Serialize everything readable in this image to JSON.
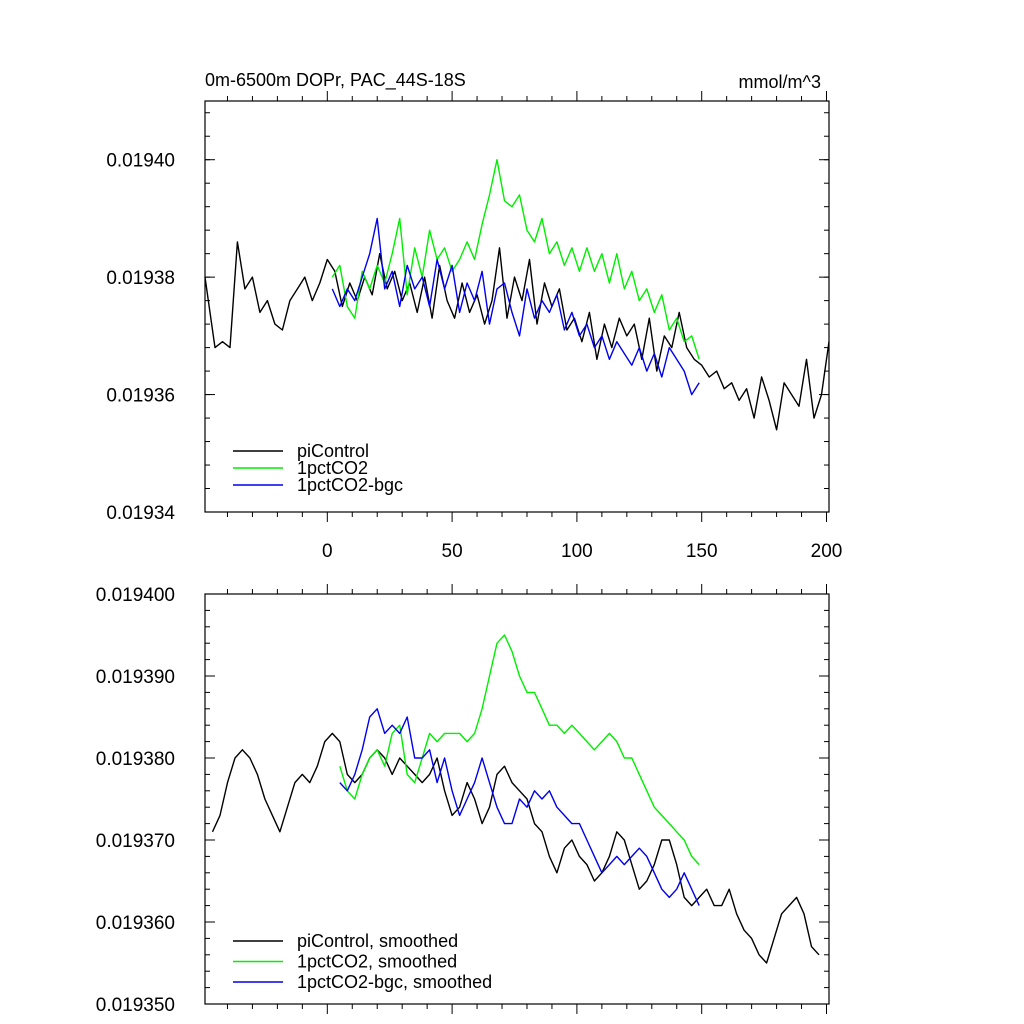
{
  "chart_data": [
    {
      "type": "line",
      "title": "0m-6500m DOPr, PAC_44S-18S",
      "units": "mmol/m^3",
      "xlabel": "",
      "ylabel": "",
      "xlim": [
        -49,
        201
      ],
      "ylim": [
        0.01934,
        0.01941
      ],
      "xticks": [
        0,
        50,
        100,
        150,
        200
      ],
      "xtick_labels": [
        "0",
        "50",
        "100",
        "150",
        "200"
      ],
      "yticks": [
        0.01934,
        0.01936,
        0.01938,
        0.0194
      ],
      "ytick_labels": [
        "0.01934",
        "0.01936",
        "0.01938",
        "0.01940"
      ],
      "legend_position": "bottom-left",
      "series": [
        {
          "name": "piControl",
          "color": "#000000",
          "x": [
            -49,
            -45,
            -42,
            -39,
            -36,
            -33,
            -30,
            -27,
            -24,
            -21,
            -18,
            -15,
            -12,
            -9,
            -6,
            -3,
            0,
            3,
            6,
            9,
            12,
            15,
            18,
            21,
            24,
            27,
            30,
            33,
            36,
            39,
            42,
            45,
            48,
            51,
            54,
            57,
            60,
            63,
            66,
            69,
            72,
            75,
            78,
            81,
            84,
            87,
            90,
            93,
            96,
            99,
            102,
            105,
            108,
            111,
            114,
            117,
            120,
            123,
            126,
            129,
            132,
            135,
            138,
            141,
            144,
            147,
            150,
            153,
            156,
            159,
            162,
            165,
            168,
            171,
            174,
            177,
            180,
            183,
            186,
            189,
            192,
            195,
            198,
            201
          ],
          "values": [
            0.01938,
            0.019368,
            0.019369,
            0.019368,
            0.019386,
            0.019378,
            0.01938,
            0.019374,
            0.019376,
            0.019372,
            0.019371,
            0.019376,
            0.019378,
            0.01938,
            0.019376,
            0.019379,
            0.019383,
            0.019381,
            0.019375,
            0.019379,
            0.019376,
            0.01938,
            0.019377,
            0.019384,
            0.019378,
            0.019381,
            0.019376,
            0.019379,
            0.019374,
            0.01938,
            0.019373,
            0.019382,
            0.019376,
            0.019373,
            0.019379,
            0.019374,
            0.019377,
            0.019372,
            0.019376,
            0.019385,
            0.019373,
            0.01938,
            0.019376,
            0.019383,
            0.019372,
            0.019379,
            0.019375,
            0.019378,
            0.019371,
            0.019373,
            0.019369,
            0.019374,
            0.019366,
            0.019372,
            0.019368,
            0.019373,
            0.01937,
            0.019372,
            0.019366,
            0.019373,
            0.019364,
            0.01937,
            0.019368,
            0.019374,
            0.019368,
            0.019366,
            0.019365,
            0.019363,
            0.019364,
            0.019361,
            0.019362,
            0.019359,
            0.019361,
            0.019356,
            0.019363,
            0.019359,
            0.019354,
            0.019362,
            0.01936,
            0.019358,
            0.019366,
            0.019356,
            0.01936,
            0.019369
          ]
        },
        {
          "name": "1pctCO2",
          "color": "#00ee00",
          "x": [
            2,
            5,
            8,
            11,
            14,
            17,
            20,
            23,
            26,
            29,
            32,
            35,
            38,
            41,
            44,
            47,
            50,
            53,
            56,
            59,
            62,
            65,
            68,
            71,
            74,
            77,
            80,
            83,
            86,
            89,
            92,
            95,
            98,
            101,
            104,
            107,
            110,
            113,
            116,
            119,
            122,
            125,
            128,
            131,
            134,
            137,
            140,
            143,
            146,
            149
          ],
          "values": [
            0.01938,
            0.019382,
            0.019375,
            0.019373,
            0.019381,
            0.019378,
            0.019382,
            0.019379,
            0.019384,
            0.01939,
            0.019377,
            0.019385,
            0.01938,
            0.019388,
            0.019383,
            0.019385,
            0.019381,
            0.019383,
            0.019386,
            0.019383,
            0.019389,
            0.019394,
            0.0194,
            0.019393,
            0.019392,
            0.019394,
            0.019388,
            0.019386,
            0.01939,
            0.019384,
            0.019386,
            0.019382,
            0.019385,
            0.019381,
            0.019385,
            0.019381,
            0.019384,
            0.019379,
            0.019384,
            0.019378,
            0.019381,
            0.019376,
            0.019378,
            0.019374,
            0.019377,
            0.019371,
            0.019373,
            0.019369,
            0.01937,
            0.019366
          ]
        },
        {
          "name": "1pctCO2-bgc",
          "color": "#0000ee",
          "x": [
            2,
            5,
            8,
            11,
            14,
            17,
            20,
            23,
            26,
            29,
            32,
            35,
            38,
            41,
            44,
            47,
            50,
            53,
            56,
            59,
            62,
            65,
            68,
            71,
            74,
            77,
            80,
            83,
            86,
            89,
            92,
            95,
            98,
            101,
            104,
            107,
            110,
            113,
            116,
            119,
            122,
            125,
            128,
            131,
            134,
            137,
            140,
            143,
            146,
            149
          ],
          "values": [
            0.019378,
            0.019375,
            0.019378,
            0.019376,
            0.01938,
            0.019384,
            0.01939,
            0.019378,
            0.019381,
            0.019375,
            0.019382,
            0.019378,
            0.01938,
            0.019375,
            0.019383,
            0.019378,
            0.019382,
            0.019374,
            0.019379,
            0.019376,
            0.019381,
            0.019372,
            0.019378,
            0.019379,
            0.019374,
            0.01937,
            0.019378,
            0.019373,
            0.019376,
            0.019374,
            0.019377,
            0.019371,
            0.019374,
            0.01937,
            0.019372,
            0.019368,
            0.01937,
            0.019366,
            0.019369,
            0.019367,
            0.019365,
            0.019368,
            0.019364,
            0.019367,
            0.019363,
            0.019368,
            0.019366,
            0.019364,
            0.01936,
            0.019362
          ]
        }
      ]
    },
    {
      "type": "line",
      "title": "",
      "xlabel": "",
      "ylabel": "",
      "xlim": [
        -49,
        201
      ],
      "ylim": [
        0.01935,
        0.0194
      ],
      "xticks": [
        0,
        50,
        100,
        150,
        200
      ],
      "yticks": [
        0.01935,
        0.01936,
        0.01937,
        0.01938,
        0.01939,
        0.0194
      ],
      "ytick_labels": [
        "0.019350",
        "0.019360",
        "0.019370",
        "0.019380",
        "0.019390",
        "0.019400"
      ],
      "legend_position": "bottom-left",
      "series": [
        {
          "name": "piControl, smoothed",
          "color": "#000000",
          "x": [
            -46,
            -43,
            -40,
            -37,
            -34,
            -31,
            -28,
            -25,
            -22,
            -19,
            -16,
            -13,
            -10,
            -7,
            -4,
            -1,
            2,
            5,
            8,
            11,
            14,
            17,
            20,
            23,
            26,
            29,
            32,
            35,
            38,
            41,
            44,
            47,
            50,
            53,
            56,
            59,
            62,
            65,
            68,
            71,
            74,
            77,
            80,
            83,
            86,
            89,
            92,
            95,
            98,
            101,
            104,
            107,
            110,
            113,
            116,
            119,
            122,
            125,
            128,
            131,
            134,
            137,
            140,
            143,
            146,
            149,
            152,
            155,
            158,
            161,
            164,
            167,
            170,
            173,
            176,
            179,
            182,
            185,
            188,
            191,
            194,
            197
          ],
          "values": [
            0.019371,
            0.019373,
            0.019377,
            0.01938,
            0.019381,
            0.01938,
            0.019378,
            0.019375,
            0.019373,
            0.019371,
            0.019374,
            0.019377,
            0.019378,
            0.019377,
            0.019379,
            0.019382,
            0.019383,
            0.019382,
            0.019378,
            0.019377,
            0.019378,
            0.01938,
            0.019381,
            0.01938,
            0.019378,
            0.01938,
            0.019379,
            0.019378,
            0.019377,
            0.019378,
            0.01938,
            0.019376,
            0.019373,
            0.019374,
            0.019377,
            0.019375,
            0.019372,
            0.019374,
            0.019378,
            0.019379,
            0.019377,
            0.019376,
            0.019375,
            0.019372,
            0.019371,
            0.019368,
            0.019366,
            0.019369,
            0.01937,
            0.019368,
            0.019367,
            0.019365,
            0.019366,
            0.019368,
            0.019371,
            0.01937,
            0.019367,
            0.019364,
            0.019365,
            0.019367,
            0.01937,
            0.01937,
            0.019367,
            0.019363,
            0.019362,
            0.019363,
            0.019364,
            0.019362,
            0.019362,
            0.019364,
            0.019361,
            0.019359,
            0.019358,
            0.019356,
            0.019355,
            0.019358,
            0.019361,
            0.019362,
            0.019363,
            0.019361,
            0.019357,
            0.019356
          ]
        },
        {
          "name": "1pctCO2, smoothed",
          "color": "#00ee00",
          "x": [
            5,
            8,
            11,
            14,
            17,
            20,
            23,
            26,
            29,
            32,
            35,
            38,
            41,
            44,
            47,
            50,
            53,
            56,
            59,
            62,
            65,
            68,
            71,
            74,
            77,
            80,
            83,
            86,
            89,
            92,
            95,
            98,
            101,
            104,
            107,
            110,
            113,
            116,
            119,
            122,
            125,
            128,
            131,
            134,
            137,
            140,
            143,
            146,
            149
          ],
          "values": [
            0.019379,
            0.019376,
            0.019375,
            0.019378,
            0.01938,
            0.019381,
            0.019379,
            0.019383,
            0.019384,
            0.019378,
            0.019377,
            0.01938,
            0.019383,
            0.019382,
            0.019383,
            0.019383,
            0.019383,
            0.019382,
            0.019383,
            0.019386,
            0.01939,
            0.019394,
            0.019395,
            0.019393,
            0.01939,
            0.019388,
            0.019388,
            0.019386,
            0.019384,
            0.019384,
            0.019383,
            0.019384,
            0.019383,
            0.019382,
            0.019381,
            0.019382,
            0.019383,
            0.019382,
            0.01938,
            0.01938,
            0.019378,
            0.019376,
            0.019374,
            0.019373,
            0.019372,
            0.019371,
            0.01937,
            0.019368,
            0.019367
          ]
        },
        {
          "name": "1pctCO2-bgc, smoothed",
          "color": "#0000ee",
          "x": [
            5,
            8,
            11,
            14,
            17,
            20,
            23,
            26,
            29,
            32,
            35,
            38,
            41,
            44,
            47,
            50,
            53,
            56,
            59,
            62,
            65,
            68,
            71,
            74,
            77,
            80,
            83,
            86,
            89,
            92,
            95,
            98,
            101,
            104,
            107,
            110,
            113,
            116,
            119,
            122,
            125,
            128,
            131,
            134,
            137,
            140,
            143,
            146,
            149
          ],
          "values": [
            0.019377,
            0.019376,
            0.019378,
            0.019381,
            0.019385,
            0.019386,
            0.019383,
            0.019384,
            0.019383,
            0.019385,
            0.01938,
            0.01938,
            0.019381,
            0.019377,
            0.01938,
            0.019376,
            0.019373,
            0.019375,
            0.019377,
            0.01938,
            0.019377,
            0.019374,
            0.019372,
            0.019372,
            0.019375,
            0.019374,
            0.019376,
            0.019375,
            0.019376,
            0.019374,
            0.019373,
            0.019372,
            0.019372,
            0.01937,
            0.019368,
            0.019366,
            0.019367,
            0.019368,
            0.019367,
            0.019368,
            0.019369,
            0.019368,
            0.019366,
            0.019364,
            0.019363,
            0.019364,
            0.019366,
            0.019364,
            0.019362
          ]
        }
      ]
    }
  ]
}
